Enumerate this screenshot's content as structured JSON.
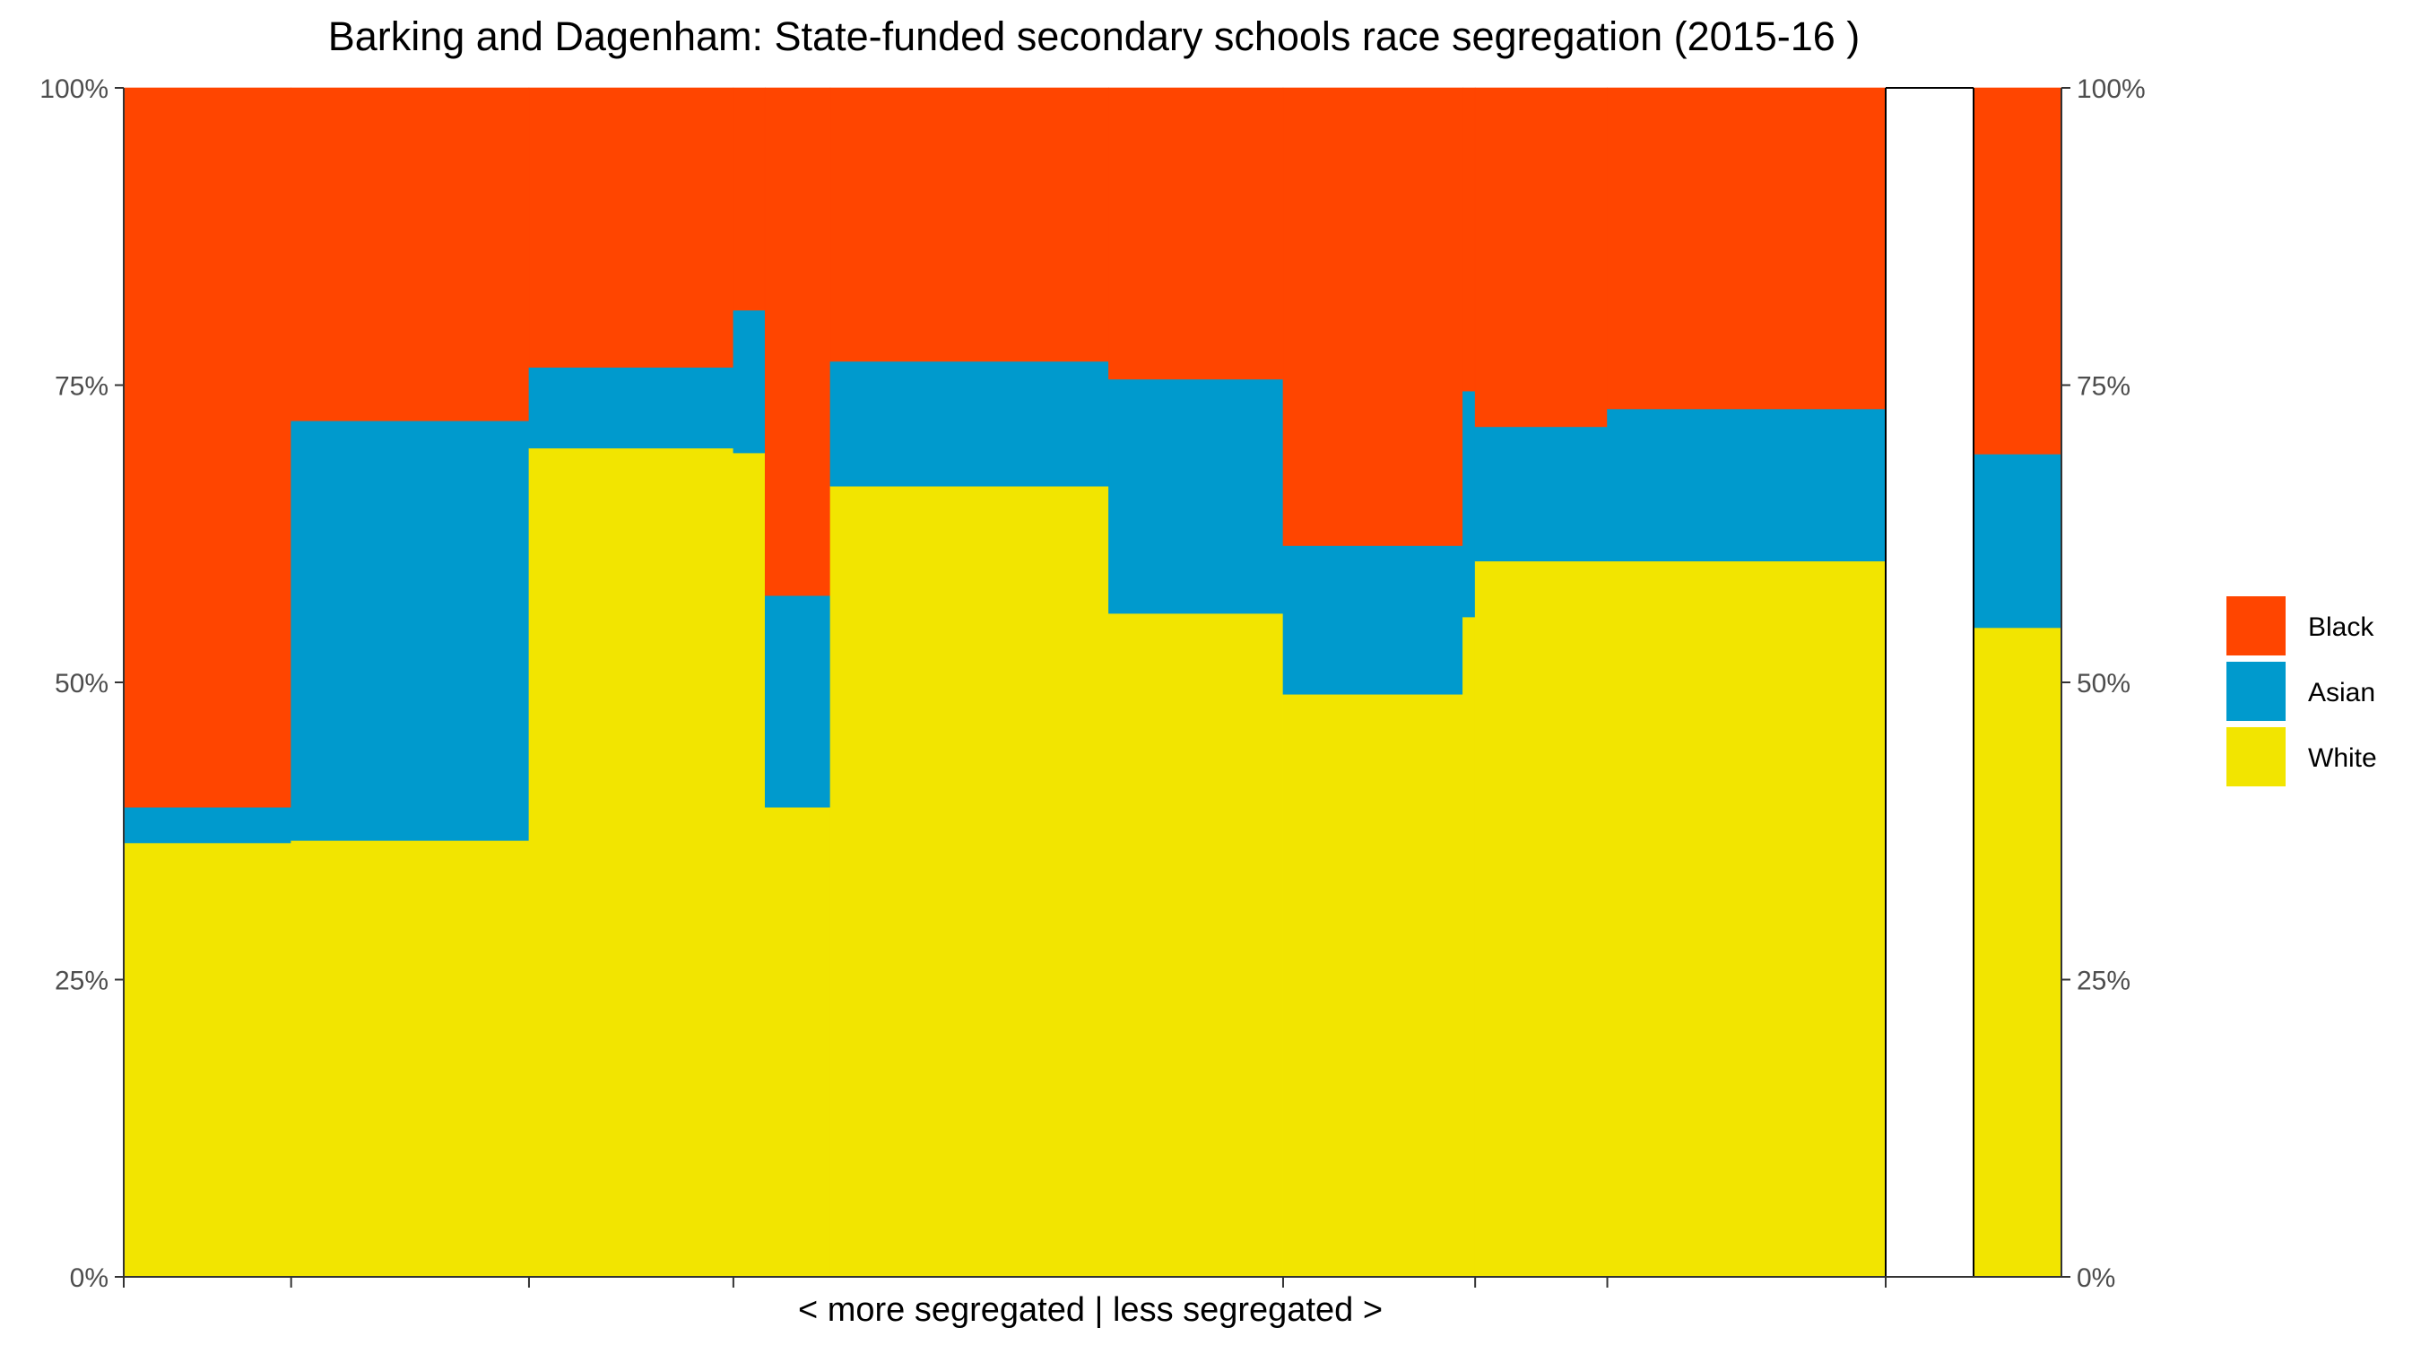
{
  "chart_data": {
    "type": "bar",
    "subtype": "marimekko-stacked-100pct",
    "title": "Barking and Dagenham: State-funded secondary schools race segregation (2015-16 )",
    "xlabel": "< more segregated | less segregated >",
    "ylabel": "",
    "ylim": [
      0,
      1
    ],
    "y_ticks": [
      {
        "value": 0,
        "label": "0%"
      },
      {
        "value": 0.25,
        "label": "25%"
      },
      {
        "value": 0.5,
        "label": "50%"
      },
      {
        "value": 0.75,
        "label": "75%"
      },
      {
        "value": 1,
        "label": "100%"
      }
    ],
    "y_axis_right_mirror": true,
    "grid": false,
    "legend_position": "right",
    "colors": {
      "Black": "#FF4500",
      "Asian": "#009ACD",
      "White": "#F2E500"
    },
    "stack_order": [
      "White",
      "Asian",
      "Black"
    ],
    "legend_order": [
      "Black",
      "Asian",
      "White"
    ],
    "x_domain": [
      0,
      1.0
    ],
    "schools": [
      {
        "x_start": 0.0,
        "x_end": 0.095,
        "White": 0.365,
        "Asian": 0.03,
        "Black": 0.605
      },
      {
        "x_start": 0.095,
        "x_end": 0.23,
        "White": 0.367,
        "Asian": 0.353,
        "Black": 0.28
      },
      {
        "x_start": 0.23,
        "x_end": 0.346,
        "White": 0.697,
        "Asian": 0.068,
        "Black": 0.235
      },
      {
        "x_start": 0.346,
        "x_end": 0.364,
        "White": 0.693,
        "Asian": 0.12,
        "Black": 0.187
      },
      {
        "x_start": 0.364,
        "x_end": 0.401,
        "White": 0.395,
        "Asian": 0.178,
        "Black": 0.427
      },
      {
        "x_start": 0.401,
        "x_end": 0.559,
        "White": 0.665,
        "Asian": 0.105,
        "Black": 0.23
      },
      {
        "x_start": 0.559,
        "x_end": 0.658,
        "White": 0.558,
        "Asian": 0.197,
        "Black": 0.245
      },
      {
        "x_start": 0.658,
        "x_end": 0.76,
        "White": 0.49,
        "Asian": 0.125,
        "Black": 0.385
      },
      {
        "x_start": 0.76,
        "x_end": 0.767,
        "White": 0.555,
        "Asian": 0.19,
        "Black": 0.255
      },
      {
        "x_start": 0.767,
        "x_end": 0.842,
        "White": 0.602,
        "Asian": 0.113,
        "Black": 0.285
      },
      {
        "x_start": 0.842,
        "x_end": 1.0,
        "White": 0.602,
        "Asian": 0.128,
        "Black": 0.27
      }
    ],
    "x_ticks": [
      0,
      0.095,
      0.23,
      0.346,
      0.658,
      0.767,
      0.842,
      1.0
    ],
    "total_bar": {
      "White": 0.546,
      "Asian": 0.146,
      "Black": 0.308
    }
  }
}
